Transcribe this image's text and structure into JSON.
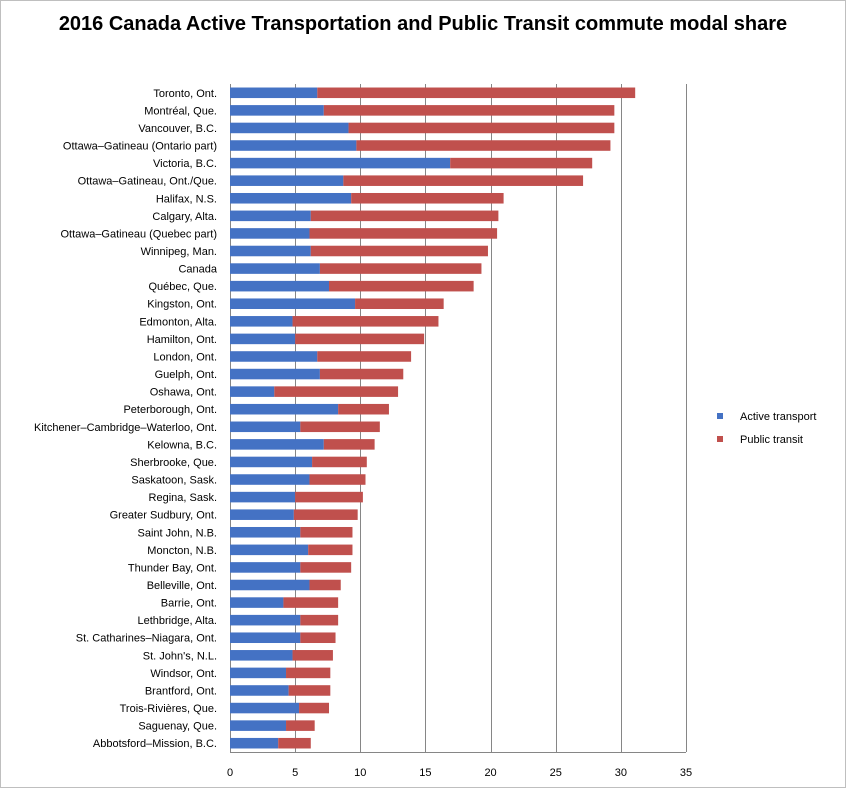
{
  "chart_data": {
    "type": "bar",
    "orientation": "horizontal",
    "stacked": true,
    "title": "2016 Canada Active Transportation and Public Transit commute modal share",
    "xlabel": "",
    "ylabel": "",
    "xlim": [
      0,
      35
    ],
    "xticks": [
      0,
      5,
      10,
      15,
      20,
      25,
      30,
      35
    ],
    "grid": "vertical",
    "legend_position": "right",
    "categories": [
      "Toronto, Ont.",
      "Montréal, Que.",
      "Vancouver, B.C.",
      "Ottawa–Gatineau (Ontario part)",
      "Victoria, B.C.",
      "Ottawa–Gatineau, Ont./Que.",
      "Halifax, N.S.",
      "Calgary, Alta.",
      "Ottawa–Gatineau (Quebec part)",
      "Winnipeg, Man.",
      "Canada",
      "Québec, Que.",
      "Kingston, Ont.",
      "Edmonton, Alta.",
      "Hamilton, Ont.",
      "London, Ont.",
      "Guelph, Ont.",
      "Oshawa, Ont.",
      "Peterborough, Ont.",
      "Kitchener–Cambridge–Waterloo,  Ont.",
      "Kelowna, B.C.",
      "Sherbrooke, Que.",
      "Saskatoon, Sask.",
      "Regina, Sask.",
      "Greater Sudbury, Ont.",
      "Saint John, N.B.",
      "Moncton, N.B.",
      "Thunder Bay, Ont.",
      "Belleville, Ont.",
      "Barrie, Ont.",
      "Lethbridge, Alta.",
      "St. Catharines–Niagara, Ont.",
      "St. John's, N.L.",
      "Windsor, Ont.",
      "Brantford, Ont.",
      "Trois-Rivières, Que.",
      "Saguenay, Que.",
      "Abbotsford–Mission, B.C."
    ],
    "series": [
      {
        "name": "Active transport",
        "color": "#4472c4",
        "values": [
          6.7,
          7.2,
          9.1,
          9.7,
          16.9,
          8.7,
          9.3,
          6.2,
          6.1,
          6.2,
          6.9,
          7.6,
          9.6,
          4.8,
          5.0,
          6.7,
          6.9,
          3.4,
          8.3,
          5.4,
          7.2,
          6.3,
          6.1,
          5.0,
          4.9,
          5.4,
          6.0,
          5.4,
          6.1,
          4.1,
          5.4,
          5.4,
          4.8,
          4.3,
          4.5,
          5.3,
          4.3,
          3.7
        ]
      },
      {
        "name": "Public transit",
        "color": "#c0504d",
        "values": [
          24.4,
          22.3,
          20.4,
          19.5,
          10.9,
          18.4,
          11.7,
          14.4,
          14.4,
          13.6,
          12.4,
          11.1,
          6.8,
          11.2,
          9.9,
          7.2,
          6.4,
          9.5,
          3.9,
          6.1,
          3.9,
          4.2,
          4.3,
          5.2,
          4.9,
          4.0,
          3.4,
          3.9,
          2.4,
          4.2,
          2.9,
          2.7,
          3.1,
          3.4,
          3.2,
          2.3,
          2.2,
          2.5
        ]
      }
    ]
  }
}
